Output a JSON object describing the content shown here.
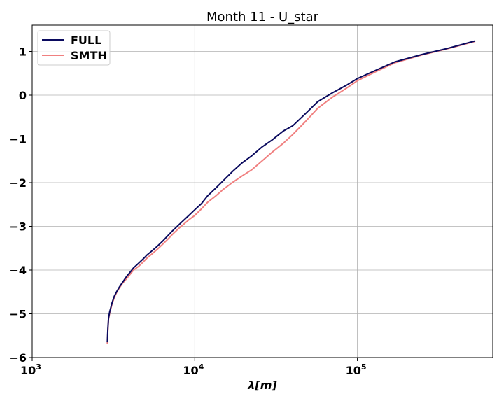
{
  "chart_data": {
    "type": "line",
    "title": "Month 11 - U_star",
    "xlabel": "λ[m]",
    "ylabel": "",
    "xscale": "log",
    "xlim": [
      1000,
      680000
    ],
    "ylim": [
      -6,
      1.6
    ],
    "grid": true,
    "legend_placement": "top-left",
    "xticks": [
      {
        "value": 1000,
        "base": "10",
        "exp": "3"
      },
      {
        "value": 10000,
        "base": "10",
        "exp": "4"
      },
      {
        "value": 100000,
        "base": "10",
        "exp": "5"
      }
    ],
    "yticks": [
      {
        "value": 1,
        "label": "1"
      },
      {
        "value": 0,
        "label": "0"
      },
      {
        "value": -1,
        "label": "−1"
      },
      {
        "value": -2,
        "label": "−2"
      },
      {
        "value": -3,
        "label": "−3"
      },
      {
        "value": -4,
        "label": "−4"
      },
      {
        "value": -5,
        "label": "−5"
      },
      {
        "value": -6,
        "label": "−6"
      }
    ],
    "series": [
      {
        "name": "FULL",
        "color": "#0a0a5e",
        "x": [
          2900,
          2920,
          2950,
          3000,
          3050,
          3100,
          3200,
          3300,
          3450,
          3600,
          3800,
          4000,
          4200,
          4500,
          4800,
          5100,
          5500,
          5900,
          6300,
          6800,
          7300,
          7900,
          8500,
          9200,
          10000,
          11000,
          12000,
          13500,
          15000,
          17000,
          19500,
          22500,
          26000,
          30000,
          35000,
          40000,
          48000,
          57000,
          70000,
          85000,
          100000,
          130000,
          170000,
          250000,
          350000,
          530000
        ],
        "y": [
          -5.65,
          -5.35,
          -5.1,
          -4.95,
          -4.85,
          -4.75,
          -4.6,
          -4.5,
          -4.38,
          -4.28,
          -4.15,
          -4.05,
          -3.95,
          -3.85,
          -3.75,
          -3.65,
          -3.55,
          -3.45,
          -3.35,
          -3.22,
          -3.1,
          -2.98,
          -2.87,
          -2.75,
          -2.62,
          -2.48,
          -2.3,
          -2.12,
          -1.95,
          -1.75,
          -1.55,
          -1.38,
          -1.18,
          -1.02,
          -0.82,
          -0.7,
          -0.42,
          -0.15,
          0.05,
          0.22,
          0.38,
          0.57,
          0.76,
          0.93,
          1.06,
          1.24
        ]
      },
      {
        "name": "SMTH",
        "color": "#f08080",
        "x": [
          2900,
          2920,
          2950,
          3000,
          3050,
          3100,
          3200,
          3300,
          3450,
          3600,
          3800,
          4000,
          4200,
          4500,
          4800,
          5100,
          5500,
          5900,
          6300,
          6800,
          7300,
          7900,
          8500,
          9200,
          10000,
          11000,
          12000,
          13500,
          15000,
          17000,
          19500,
          22500,
          26000,
          30000,
          35000,
          40000,
          48000,
          57000,
          70000,
          85000,
          100000,
          130000,
          170000,
          250000,
          350000,
          530000
        ],
        "y": [
          -5.68,
          -5.4,
          -5.12,
          -4.98,
          -4.88,
          -4.78,
          -4.63,
          -4.52,
          -4.4,
          -4.3,
          -4.2,
          -4.1,
          -4.0,
          -3.92,
          -3.82,
          -3.72,
          -3.62,
          -3.52,
          -3.42,
          -3.3,
          -3.18,
          -3.06,
          -2.96,
          -2.85,
          -2.75,
          -2.6,
          -2.45,
          -2.3,
          -2.15,
          -2.0,
          -1.85,
          -1.7,
          -1.5,
          -1.3,
          -1.1,
          -0.9,
          -0.6,
          -0.3,
          -0.05,
          0.15,
          0.33,
          0.54,
          0.74,
          0.92,
          1.05,
          1.23
        ]
      }
    ]
  }
}
